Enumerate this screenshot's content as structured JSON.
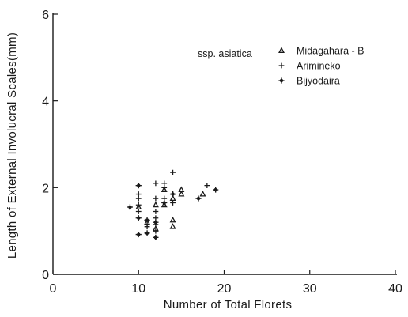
{
  "chart_data": {
    "type": "scatter",
    "xlabel": "Number of Total Florets",
    "ylabel": "Length of External Involucral Scales(mm)",
    "xlim": [
      0,
      40
    ],
    "ylim": [
      0,
      6
    ],
    "x_ticks": [
      "0",
      "10",
      "20",
      "30",
      "40"
    ],
    "y_ticks": [
      "0",
      "2",
      "4",
      "6"
    ],
    "grid": false,
    "legend_title": "ssp. asiatica",
    "legend_position": "top-right",
    "series": [
      {
        "name": "Midagahara - B",
        "marker": "triangle",
        "points": [
          [
            10,
            1.55
          ],
          [
            11,
            1.2
          ],
          [
            12,
            1.6
          ],
          [
            12,
            1.05
          ],
          [
            13,
            1.95
          ],
          [
            13,
            1.6
          ],
          [
            14,
            1.25
          ],
          [
            14,
            1.1
          ],
          [
            14,
            1.75
          ],
          [
            15,
            1.95
          ],
          [
            15,
            1.85
          ],
          [
            17.5,
            1.85
          ]
        ]
      },
      {
        "name": "Arimineko",
        "marker": "plus",
        "points": [
          [
            10,
            2.05
          ],
          [
            10,
            1.85
          ],
          [
            10,
            1.75
          ],
          [
            10,
            1.6
          ],
          [
            10,
            1.45
          ],
          [
            11,
            1.15
          ],
          [
            11,
            1.1
          ],
          [
            12,
            2.1
          ],
          [
            12,
            1.75
          ],
          [
            12,
            1.45
          ],
          [
            12,
            1.3
          ],
          [
            12,
            1.15
          ],
          [
            12,
            1.0
          ],
          [
            12,
            0.85
          ],
          [
            13,
            2.1
          ],
          [
            13,
            2.0
          ],
          [
            13,
            1.75
          ],
          [
            14,
            2.35
          ],
          [
            14,
            1.85
          ],
          [
            14,
            1.65
          ],
          [
            18,
            2.05
          ]
        ]
      },
      {
        "name": "Bijyodaira",
        "marker": "star",
        "points": [
          [
            9,
            1.55
          ],
          [
            10,
            2.05
          ],
          [
            10,
            1.3
          ],
          [
            10,
            0.92
          ],
          [
            11,
            1.25
          ],
          [
            11,
            0.95
          ],
          [
            12,
            1.2
          ],
          [
            12,
            0.85
          ],
          [
            13,
            1.65
          ],
          [
            14,
            1.85
          ],
          [
            17,
            1.75
          ],
          [
            19,
            1.95
          ]
        ]
      }
    ]
  }
}
